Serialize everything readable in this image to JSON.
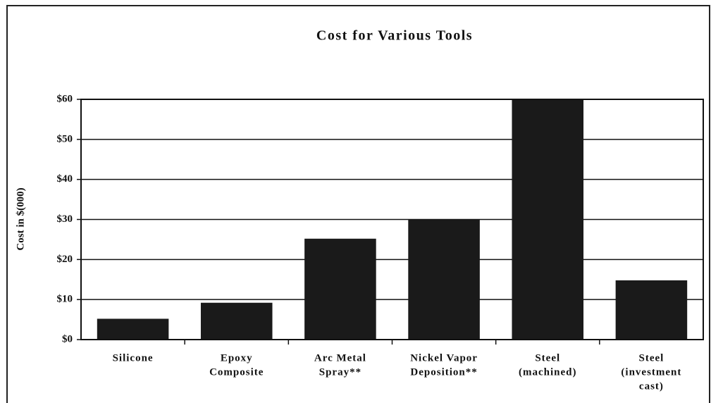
{
  "chart_data": {
    "type": "bar",
    "title": "Cost for Various Tools",
    "y_label": "Cost in $(000)",
    "categories": [
      [
        "Silicone"
      ],
      [
        "Epoxy",
        "Composite"
      ],
      [
        "Arc Metal",
        "Spray**"
      ],
      [
        "Nickel Vapor",
        "Deposition**"
      ],
      [
        "Steel",
        "(machined)"
      ],
      [
        "Steel",
        "(investment",
        "cast)"
      ]
    ],
    "values": [
      5.2,
      9.2,
      25.2,
      30,
      60,
      14.8
    ],
    "color": "#1a1a1a",
    "ylim": [
      0,
      60
    ],
    "yticks": [
      {
        "value": 0,
        "label": "$0"
      },
      {
        "value": 10,
        "label": "$10"
      },
      {
        "value": 20,
        "label": "$20"
      },
      {
        "value": 30,
        "label": "$30"
      },
      {
        "value": 40,
        "label": "$40"
      },
      {
        "value": 50,
        "label": "$50"
      },
      {
        "value": 60,
        "label": "$60"
      }
    ],
    "grid": true
  }
}
